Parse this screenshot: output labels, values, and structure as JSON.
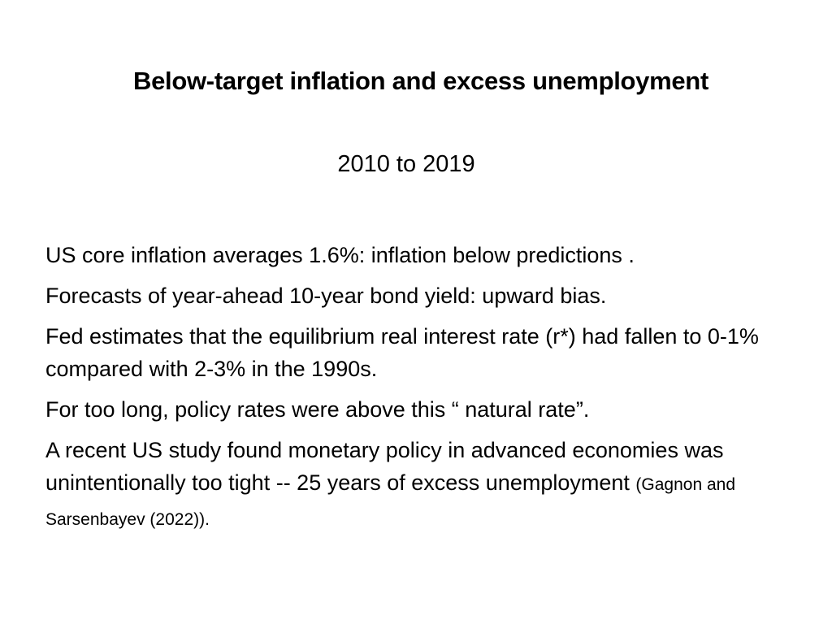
{
  "slide": {
    "title": "Below-target inflation and excess unemployment",
    "subtitle": "2010 to 2019",
    "paragraphs": [
      "US core inflation averages 1.6%: inflation below predictions .",
      "Forecasts of year-ahead 10-year bond yield: upward bias.",
      "Fed estimates that the equilibrium real interest rate (r*) had fallen to 0-1% compared with 2-3% in the 1990s.",
      "For too long, policy rates were above this “ natural rate”.",
      "A recent US study found monetary policy in advanced economies was unintentionally too tight -- 25 years of excess unemployment"
    ],
    "citation": "(Gagnon and Sarsenbayev (2022))."
  }
}
